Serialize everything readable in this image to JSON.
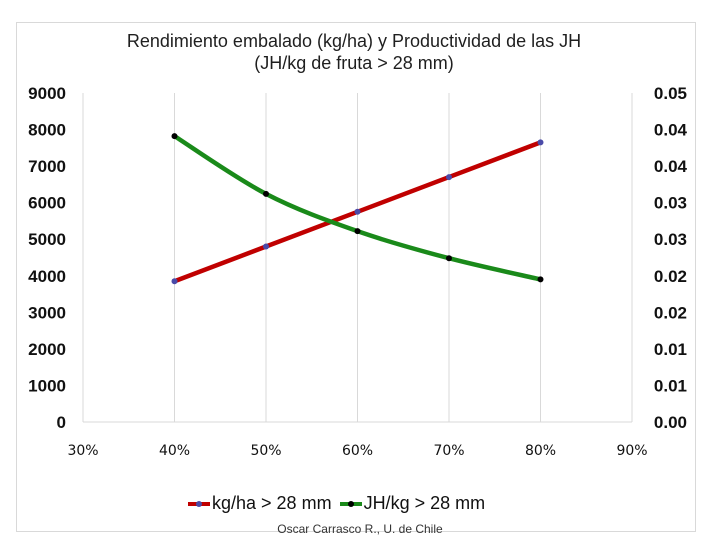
{
  "chart_data": {
    "type": "line",
    "title": "Rendimiento embalado (kg/ha) y Productividad de las JH",
    "subtitle": "(JH/kg de fruta > 28 mm)",
    "x_ticks": [
      "30%",
      "40%",
      "50%",
      "60%",
      "70%",
      "80%",
      "90%"
    ],
    "x": [
      40,
      50,
      60,
      70,
      80
    ],
    "xlim": [
      30,
      90
    ],
    "y_left_ticks": [
      "0",
      "1000",
      "2000",
      "3000",
      "4000",
      "5000",
      "6000",
      "7000",
      "8000",
      "9000"
    ],
    "ylim_left": [
      0,
      9000
    ],
    "y_right_ticks": [
      "0.00",
      "0.01",
      "0.01",
      "0.02",
      "0.02",
      "0.03",
      "0.03",
      "0.04",
      "0.04",
      "0.05"
    ],
    "ylim_right": [
      0,
      0.045
    ],
    "grid": "vertical",
    "legend_position": "bottom",
    "series": [
      {
        "name": "kg/ha > 28 mm",
        "axis": "left",
        "color": "#c00000",
        "marker_color": "#4a4aa8",
        "values": [
          3850,
          4800,
          5750,
          6700,
          7650
        ]
      },
      {
        "name": "JH/kg > 28 mm",
        "axis": "right",
        "color": "#1a8a1a",
        "marker_color": "#000000",
        "values": [
          0.0391,
          0.0312,
          0.0261,
          0.0224,
          0.0195
        ]
      }
    ]
  },
  "credit": "Oscar Carrasco R., U. de Chile"
}
